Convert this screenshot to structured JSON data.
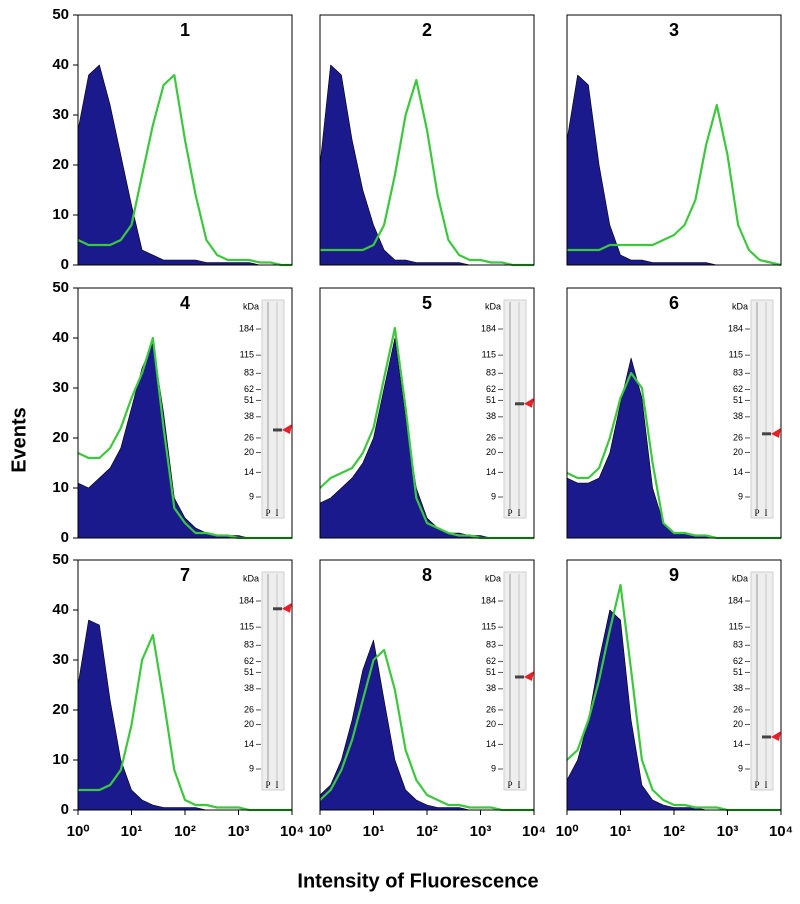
{
  "figure": {
    "xlabel": "Intensity of Fluorescence",
    "ylabel": "Events"
  },
  "chart_data": [
    {
      "type": "area",
      "title": "1",
      "xscale": "log",
      "xlim": [
        1,
        10000
      ],
      "ylim": [
        0,
        50
      ],
      "yticks": [
        0,
        10,
        20,
        30,
        40,
        50
      ],
      "x": [
        1,
        1.58,
        2.51,
        3.98,
        6.31,
        10,
        15.8,
        25.1,
        39.8,
        63.1,
        100,
        158,
        251,
        398,
        631,
        1000,
        1580,
        2510,
        3980,
        6310,
        10000
      ],
      "series": [
        {
          "color": "#1a1a8c",
          "filled": true,
          "values": [
            27,
            38,
            40,
            32,
            22,
            12,
            3,
            2,
            1,
            1,
            1,
            1,
            0.5,
            0.5,
            0.5,
            0.5,
            0.5,
            0,
            0,
            0,
            0
          ]
        },
        {
          "color": "#3cc83c",
          "filled": false,
          "values": [
            5,
            4,
            4,
            4,
            5,
            8,
            18,
            28,
            36,
            38,
            25,
            14,
            5,
            2,
            1,
            1,
            1,
            0.5,
            0.5,
            0,
            0
          ]
        }
      ]
    },
    {
      "type": "area",
      "title": "2",
      "xscale": "log",
      "xlim": [
        1,
        10000
      ],
      "ylim": [
        0,
        50
      ],
      "x": [
        1,
        1.58,
        2.51,
        3.98,
        6.31,
        10,
        15.8,
        25.1,
        39.8,
        63.1,
        100,
        158,
        251,
        398,
        631,
        1000,
        1580,
        2510,
        3980,
        6310,
        10000
      ],
      "series": [
        {
          "color": "#1a1a8c",
          "filled": true,
          "values": [
            20,
            40,
            38,
            25,
            15,
            8,
            3,
            1,
            1,
            0.5,
            0.5,
            0.5,
            0.5,
            0.5,
            0,
            0,
            0,
            0,
            0,
            0,
            0
          ]
        },
        {
          "color": "#3cc83c",
          "filled": false,
          "values": [
            3,
            3,
            3,
            3,
            3,
            4,
            8,
            18,
            30,
            37,
            27,
            14,
            5,
            2,
            1,
            1,
            0.5,
            0.5,
            0,
            0,
            0
          ]
        }
      ]
    },
    {
      "type": "area",
      "title": "3",
      "xscale": "log",
      "xlim": [
        1,
        10000
      ],
      "ylim": [
        0,
        50
      ],
      "x": [
        1,
        1.58,
        2.51,
        3.98,
        6.31,
        10,
        15.8,
        25.1,
        39.8,
        63.1,
        100,
        158,
        251,
        398,
        631,
        1000,
        1580,
        2510,
        3980,
        6310,
        10000
      ],
      "series": [
        {
          "color": "#1a1a8c",
          "filled": true,
          "values": [
            25,
            38,
            36,
            20,
            8,
            2,
            1,
            1,
            0.5,
            0.5,
            0.5,
            0.5,
            0.5,
            0.5,
            0,
            0,
            0,
            0,
            0,
            0,
            0
          ]
        },
        {
          "color": "#3cc83c",
          "filled": false,
          "values": [
            3,
            3,
            3,
            3,
            4,
            4,
            4,
            4,
            4,
            5,
            6,
            8,
            13,
            24,
            32,
            22,
            8,
            3,
            1,
            0.5,
            0
          ]
        }
      ]
    },
    {
      "type": "area",
      "title": "4",
      "xscale": "log",
      "xlim": [
        1,
        10000
      ],
      "ylim": [
        0,
        50
      ],
      "yticks": [
        0,
        10,
        20,
        30,
        40,
        50
      ],
      "x": [
        1,
        1.58,
        2.51,
        3.98,
        6.31,
        10,
        15.8,
        25.1,
        39.8,
        63.1,
        100,
        158,
        251,
        398,
        631,
        1000,
        1580,
        2510,
        3980,
        6310,
        10000
      ],
      "series": [
        {
          "color": "#1a1a8c",
          "filled": true,
          "values": [
            11,
            10,
            12,
            14,
            18,
            26,
            34,
            39,
            25,
            8,
            4,
            2,
            1,
            0.5,
            0.5,
            0.5,
            0,
            0,
            0,
            0,
            0
          ]
        },
        {
          "color": "#3cc83c",
          "filled": false,
          "values": [
            17,
            16,
            16,
            18,
            22,
            28,
            33,
            40,
            22,
            6,
            3,
            1,
            1,
            0.5,
            0.5,
            0,
            0,
            0,
            0,
            0,
            0
          ]
        }
      ],
      "blot": {
        "unit": "kDa",
        "markers": [
          184,
          115,
          83,
          62,
          51,
          38,
          26,
          20,
          14,
          9
        ],
        "lanes": [
          "P",
          "I"
        ],
        "band": 30
      }
    },
    {
      "type": "area",
      "title": "5",
      "xscale": "log",
      "xlim": [
        1,
        10000
      ],
      "ylim": [
        0,
        50
      ],
      "x": [
        1,
        1.58,
        2.51,
        3.98,
        6.31,
        10,
        15.8,
        25.1,
        39.8,
        63.1,
        100,
        158,
        251,
        398,
        631,
        1000,
        1580,
        2510,
        3980,
        6310,
        10000
      ],
      "series": [
        {
          "color": "#1a1a8c",
          "filled": true,
          "values": [
            7,
            8,
            10,
            12,
            15,
            20,
            30,
            40,
            24,
            10,
            4,
            2,
            1,
            1,
            0.5,
            0.5,
            0,
            0,
            0,
            0,
            0
          ]
        },
        {
          "color": "#3cc83c",
          "filled": false,
          "values": [
            10,
            12,
            13,
            14,
            17,
            22,
            32,
            42,
            26,
            8,
            3,
            2,
            1,
            0.5,
            0.5,
            0,
            0,
            0,
            0,
            0,
            0
          ]
        }
      ],
      "blot": {
        "unit": "kDa",
        "markers": [
          184,
          115,
          83,
          62,
          51,
          38,
          26,
          20,
          14,
          9
        ],
        "lanes": [
          "P",
          "I"
        ],
        "band": 48
      }
    },
    {
      "type": "area",
      "title": "6",
      "xscale": "log",
      "xlim": [
        1,
        10000
      ],
      "ylim": [
        0,
        50
      ],
      "x": [
        1,
        1.58,
        2.51,
        3.98,
        6.31,
        10,
        15.8,
        25.1,
        39.8,
        63.1,
        100,
        158,
        251,
        398,
        631,
        1000,
        1580,
        2510,
        3980,
        6310,
        10000
      ],
      "series": [
        {
          "color": "#1a1a8c",
          "filled": true,
          "values": [
            12,
            11,
            11,
            12,
            17,
            27,
            36,
            28,
            10,
            3,
            1,
            1,
            0.5,
            0.5,
            0,
            0,
            0,
            0,
            0,
            0,
            0
          ]
        },
        {
          "color": "#3cc83c",
          "filled": false,
          "values": [
            13,
            12,
            12,
            14,
            20,
            28,
            33,
            30,
            15,
            3,
            1,
            1,
            0.5,
            0.5,
            0,
            0,
            0,
            0,
            0,
            0,
            0
          ]
        }
      ],
      "blot": {
        "unit": "kDa",
        "markers": [
          184,
          115,
          83,
          62,
          51,
          38,
          26,
          20,
          14,
          9
        ],
        "lanes": [
          "P",
          "I"
        ],
        "band": 28
      }
    },
    {
      "type": "area",
      "title": "7",
      "xscale": "log",
      "xlim": [
        1,
        10000
      ],
      "ylim": [
        0,
        50
      ],
      "yticks": [
        0,
        10,
        20,
        30,
        40,
        50
      ],
      "xticks": [
        {
          "value": 1,
          "label": "10⁰"
        },
        {
          "value": 10,
          "label": "10¹"
        },
        {
          "value": 100,
          "label": "10²"
        },
        {
          "value": 1000,
          "label": "10³"
        },
        {
          "value": 10000,
          "label": "10⁴"
        }
      ],
      "x": [
        1,
        1.58,
        2.51,
        3.98,
        6.31,
        10,
        15.8,
        25.1,
        39.8,
        63.1,
        100,
        158,
        251,
        398,
        631,
        1000,
        1580,
        2510,
        3980,
        6310,
        10000
      ],
      "series": [
        {
          "color": "#1a1a8c",
          "filled": true,
          "values": [
            25,
            38,
            37,
            22,
            10,
            4,
            2,
            1,
            0.5,
            0.5,
            0.5,
            0.5,
            0,
            0,
            0,
            0,
            0,
            0,
            0,
            0,
            0
          ]
        },
        {
          "color": "#3cc83c",
          "filled": false,
          "values": [
            4,
            4,
            4,
            5,
            8,
            17,
            30,
            35,
            22,
            8,
            2,
            1,
            1,
            0.5,
            0.5,
            0.5,
            0,
            0,
            0,
            0,
            0
          ]
        }
      ],
      "blot": {
        "unit": "kDa",
        "markers": [
          184,
          115,
          83,
          62,
          51,
          38,
          26,
          20,
          14,
          9
        ],
        "lanes": [
          "P",
          "I"
        ],
        "band": 160
      }
    },
    {
      "type": "area",
      "title": "8",
      "xscale": "log",
      "xlim": [
        1,
        10000
      ],
      "ylim": [
        0,
        50
      ],
      "xticks": [
        {
          "value": 1,
          "label": "10⁰"
        },
        {
          "value": 10,
          "label": "10¹"
        },
        {
          "value": 100,
          "label": "10²"
        },
        {
          "value": 1000,
          "label": "10³"
        },
        {
          "value": 10000,
          "label": "10⁴"
        }
      ],
      "x": [
        1,
        1.58,
        2.51,
        3.98,
        6.31,
        10,
        15.8,
        25.1,
        39.8,
        63.1,
        100,
        158,
        251,
        398,
        631,
        1000,
        1580,
        2510,
        3980,
        6310,
        10000
      ],
      "series": [
        {
          "color": "#1a1a8c",
          "filled": true,
          "values": [
            3,
            5,
            10,
            18,
            28,
            34,
            22,
            10,
            4,
            2,
            1,
            0.5,
            0.5,
            0.5,
            0,
            0,
            0,
            0,
            0,
            0,
            0
          ]
        },
        {
          "color": "#3cc83c",
          "filled": false,
          "values": [
            2,
            4,
            8,
            14,
            22,
            30,
            32,
            24,
            12,
            6,
            3,
            2,
            1,
            1,
            0.5,
            0.5,
            0.5,
            0,
            0,
            0,
            0
          ]
        }
      ],
      "blot": {
        "unit": "kDa",
        "markers": [
          184,
          115,
          83,
          62,
          51,
          38,
          26,
          20,
          14,
          9
        ],
        "lanes": [
          "P",
          "I"
        ],
        "band": 47
      }
    },
    {
      "type": "area",
      "title": "9",
      "xscale": "log",
      "xlim": [
        1,
        10000
      ],
      "ylim": [
        0,
        50
      ],
      "xticks": [
        {
          "value": 1,
          "label": "10⁰"
        },
        {
          "value": 10,
          "label": "10¹"
        },
        {
          "value": 100,
          "label": "10²"
        },
        {
          "value": 1000,
          "label": "10³"
        },
        {
          "value": 10000,
          "label": "10⁴"
        }
      ],
      "x": [
        1,
        1.58,
        2.51,
        3.98,
        6.31,
        10,
        15.8,
        25.1,
        39.8,
        63.1,
        100,
        158,
        251,
        398,
        631,
        1000,
        1580,
        2510,
        3980,
        6310,
        10000
      ],
      "series": [
        {
          "color": "#1a1a8c",
          "filled": true,
          "values": [
            6,
            10,
            18,
            30,
            40,
            38,
            18,
            5,
            2,
            1,
            0.5,
            0.5,
            0.5,
            0,
            0,
            0,
            0,
            0,
            0,
            0,
            0
          ]
        },
        {
          "color": "#3cc83c",
          "filled": false,
          "values": [
            10,
            12,
            18,
            26,
            36,
            45,
            28,
            10,
            4,
            2,
            1,
            1,
            0.5,
            0.5,
            0.5,
            0,
            0,
            0,
            0,
            0,
            0
          ]
        }
      ],
      "blot": {
        "unit": "kDa",
        "markers": [
          184,
          115,
          83,
          62,
          51,
          38,
          26,
          20,
          14,
          9
        ],
        "lanes": [
          "P",
          "I"
        ],
        "band": 16
      }
    }
  ]
}
